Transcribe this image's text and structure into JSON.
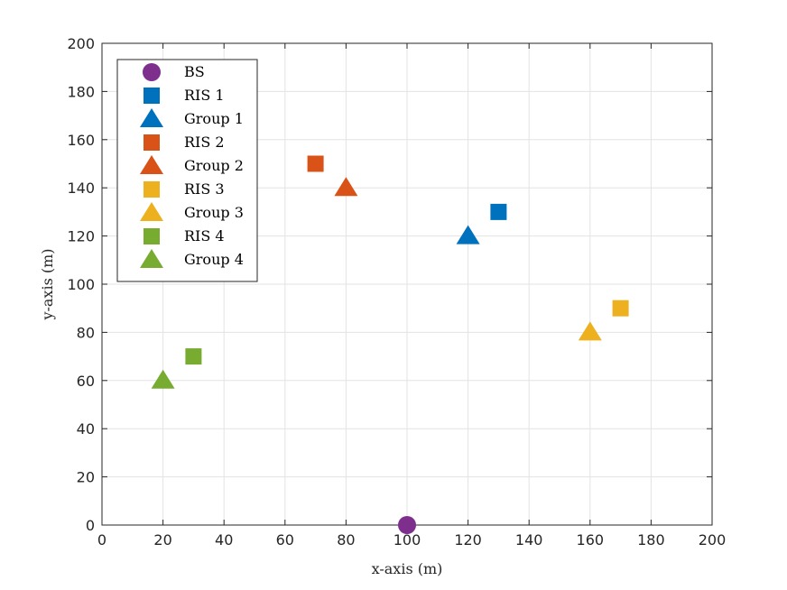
{
  "chart_data": {
    "type": "scatter",
    "title": "",
    "xlabel": "x-axis (m)",
    "ylabel": "y-axis (m)",
    "xlim": [
      0,
      200
    ],
    "ylim": [
      0,
      200
    ],
    "xticks": [
      0,
      20,
      40,
      60,
      80,
      100,
      120,
      140,
      160,
      180,
      200
    ],
    "yticks": [
      0,
      20,
      40,
      60,
      80,
      100,
      120,
      140,
      160,
      180,
      200
    ],
    "grid": true,
    "legend_position": "top-left",
    "series": [
      {
        "name": "BS",
        "marker": "circle",
        "color": "#7E2F8E",
        "points": [
          [
            100,
            0
          ]
        ]
      },
      {
        "name": "RIS 1",
        "marker": "square",
        "color": "#0072BD",
        "points": [
          [
            130,
            130
          ]
        ]
      },
      {
        "name": "Group 1",
        "marker": "triangle",
        "color": "#0072BD",
        "points": [
          [
            120,
            120
          ]
        ]
      },
      {
        "name": "RIS 2",
        "marker": "square",
        "color": "#D95319",
        "points": [
          [
            70,
            150
          ]
        ]
      },
      {
        "name": "Group 2",
        "marker": "triangle",
        "color": "#D95319",
        "points": [
          [
            80,
            140
          ]
        ]
      },
      {
        "name": "RIS 3",
        "marker": "square",
        "color": "#EDB120",
        "points": [
          [
            170,
            90
          ]
        ]
      },
      {
        "name": "Group 3",
        "marker": "triangle",
        "color": "#EDB120",
        "points": [
          [
            160,
            80
          ]
        ]
      },
      {
        "name": "RIS 4",
        "marker": "square",
        "color": "#77AC30",
        "points": [
          [
            30,
            70
          ]
        ]
      },
      {
        "name": "Group 4",
        "marker": "triangle",
        "color": "#77AC30",
        "points": [
          [
            20,
            60
          ]
        ]
      }
    ]
  }
}
